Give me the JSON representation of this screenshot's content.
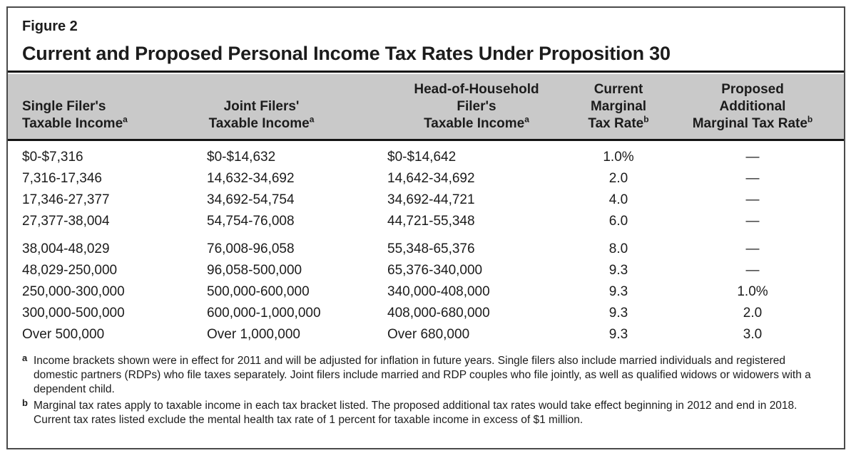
{
  "figure": {
    "label": "Figure 2",
    "title": "Current and Proposed Personal Income Tax Rates Under Proposition 30"
  },
  "table": {
    "header": {
      "col1": {
        "line1": "Single Filer's",
        "line2": "Taxable Income",
        "sup": "a"
      },
      "col2": {
        "line1": "Joint Filers'",
        "line2": "Taxable Income",
        "sup": "a"
      },
      "col3": {
        "line1": "Head-of-Household",
        "line2": "Filer's",
        "line3": "Taxable Income",
        "sup": "a"
      },
      "col4": {
        "line1": "Current",
        "line2": "Marginal",
        "line3": "Tax Rate",
        "sup": "b"
      },
      "col5": {
        "line1": "Proposed",
        "line2": "Additional",
        "line3": "Marginal Tax Rate",
        "sup": "b"
      }
    },
    "rows": [
      [
        "$0-$7,316",
        "$0-$14,632",
        "$0-$14,642",
        "1.0%",
        "—"
      ],
      [
        "7,316-17,346",
        "14,632-34,692",
        "14,642-34,692",
        "2.0",
        "—"
      ],
      [
        "17,346-27,377",
        "34,692-54,754",
        "34,692-44,721",
        "4.0",
        "—"
      ],
      [
        "27,377-38,004",
        "54,754-76,008",
        "44,721-55,348",
        "6.0",
        "—"
      ],
      [
        "38,004-48,029",
        "76,008-96,058",
        "55,348-65,376",
        "8.0",
        "—"
      ],
      [
        "48,029-250,000",
        "96,058-500,000",
        "65,376-340,000",
        "9.3",
        "—"
      ],
      [
        "250,000-300,000",
        "500,000-600,000",
        "340,000-408,000",
        "9.3",
        "1.0%"
      ],
      [
        "300,000-500,000",
        "600,000-1,000,000",
        "408,000-680,000",
        "9.3",
        "2.0"
      ],
      [
        "Over 500,000",
        "Over 1,000,000",
        "Over 680,000",
        "9.3",
        "3.0"
      ]
    ]
  },
  "footnotes": [
    {
      "marker": "a",
      "text": "Income brackets shown were in effect for 2011 and will be adjusted for inflation in future years. Single filers also include married individuals and registered domestic partners (RDPs) who file taxes separately. Joint filers include married and RDP couples who file jointly, as well as qualified widows or widowers with a dependent child."
    },
    {
      "marker": "b",
      "text": "Marginal tax rates apply to taxable income in each tax bracket listed. The proposed additional tax rates would take effect beginning in 2012 and end in 2018. Current tax rates listed exclude the mental health tax rate of 1 percent for taxable income in excess of $1 million."
    }
  ],
  "colors": {
    "header_bg": "#c9c9c9",
    "rule": "#141414",
    "text": "#1c1c1c",
    "frame_border": "#4a4a4a"
  }
}
